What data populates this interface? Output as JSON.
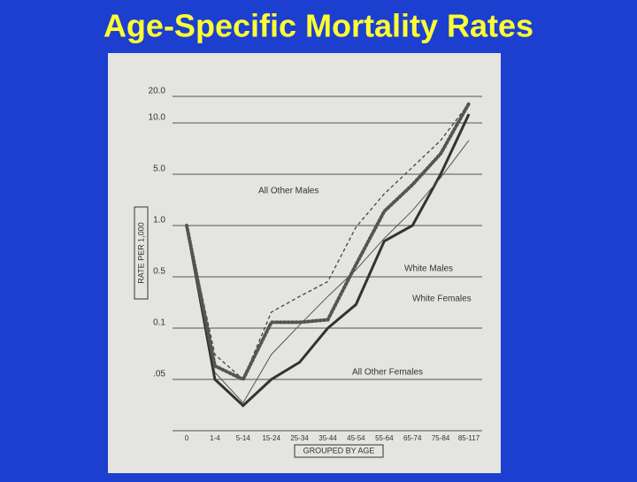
{
  "chart_data": {
    "type": "line",
    "title": "Age-Specific Mortality Rates",
    "x_label": "GROUPED BY AGE",
    "y_label": "RATE PER 1,000",
    "categories": [
      "0",
      "1-4",
      "5-14",
      "15-24",
      "25-34",
      "35-44",
      "45-54",
      "55-64",
      "65-74",
      "75-84",
      "85-117"
    ],
    "series": [
      {
        "name": "White Males",
        "color": "#333333",
        "style": "solid-thick",
        "values": [
          1.0,
          0.05,
          0.022,
          0.05,
          0.063,
          0.1,
          0.21,
          0.81,
          1.0,
          5.0,
          12.6
        ]
      },
      {
        "name": "All Other Males",
        "color": "#444444",
        "style": "dashed",
        "values": [
          1.0,
          0.07,
          0.05,
          0.165,
          0.27,
          0.43,
          0.98,
          2.7,
          5.5,
          7.9,
          16.6
        ]
      },
      {
        "name": "White Females",
        "color": "#555555",
        "style": "dotted",
        "values": [
          1.0,
          0.06,
          0.05,
          0.12,
          0.12,
          0.13,
          0.59,
          1.56,
          3.6,
          6.6,
          16.6
        ]
      },
      {
        "name": "All Other Females",
        "color": "#555555",
        "style": "thin",
        "values": [
          1.0,
          0.055,
          0.024,
          0.07,
          0.11,
          0.27,
          0.55,
          0.84,
          1.6,
          4.5,
          7.9
        ]
      }
    ],
    "ylim": [
      0.01,
      20
    ],
    "yticks": [
      {
        "value": 20,
        "label": "20.0"
      },
      {
        "value": 10,
        "label": "10.0"
      },
      {
        "value": 5,
        "label": "5.0"
      },
      {
        "value": 1,
        "label": "1.0"
      },
      0.5,
      0.1,
      {
        "value": 0.05,
        "label": ".05"
      }
    ],
    "grid": true
  }
}
